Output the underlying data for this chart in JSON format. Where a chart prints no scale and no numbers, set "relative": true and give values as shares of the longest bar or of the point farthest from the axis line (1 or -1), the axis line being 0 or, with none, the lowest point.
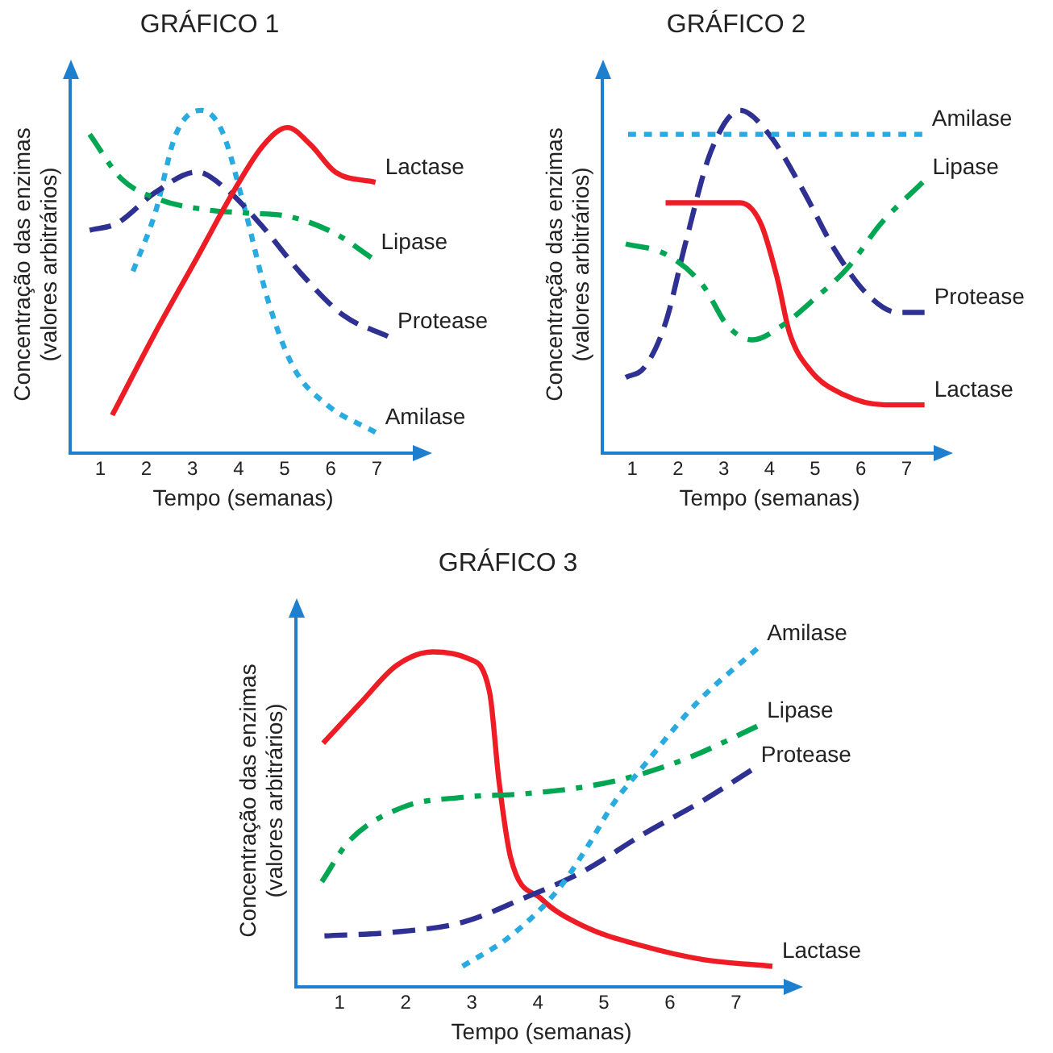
{
  "chart_data": [
    {
      "type": "line",
      "title": "GRÁFICO 1",
      "xlabel": "Tempo (semanas)",
      "ylabel": "Concentração das enzimas\n(valores arbitrários)",
      "relative": true,
      "xlim": [
        0.35,
        7.85
      ],
      "xticks": [
        1,
        2,
        3,
        4,
        5,
        6,
        7
      ],
      "grid": false,
      "legend": false,
      "marker": "none",
      "series": [
        {
          "name": "Lactase",
          "color": "#ee1c25",
          "line_style": "solid",
          "x": [
            1.26,
            2.19,
            3.1,
            3.92,
            4.55,
            5.06,
            5.56,
            6.1,
            6.97
          ],
          "values": [
            0.11,
            0.35,
            0.57,
            0.77,
            0.9,
            0.95,
            0.9,
            0.82,
            0.79
          ]
        },
        {
          "name": "Lipase",
          "color": "#00a651",
          "line_style": "dashdot",
          "x": [
            0.77,
            1.46,
            2.28,
            3.28,
            4.19,
            5.1,
            6.1,
            6.88
          ],
          "values": [
            0.93,
            0.8,
            0.74,
            0.71,
            0.7,
            0.69,
            0.64,
            0.57
          ]
        },
        {
          "name": "Protease",
          "color": "#2e3192",
          "line_style": "dashed",
          "x": [
            0.77,
            1.36,
            2.19,
            3.1,
            3.73,
            4.46,
            5.38,
            6.29,
            7.24
          ],
          "values": [
            0.65,
            0.67,
            0.76,
            0.82,
            0.77,
            0.67,
            0.52,
            0.4,
            0.34
          ]
        },
        {
          "name": "Amilase",
          "color": "#29abe2",
          "line_style": "dotted",
          "x": [
            1.71,
            2.19,
            2.64,
            3.19,
            3.64,
            4.1,
            4.65,
            5.19,
            5.92,
            6.97
          ],
          "values": [
            0.53,
            0.7,
            0.93,
            1,
            0.94,
            0.73,
            0.44,
            0.25,
            0.14,
            0.06
          ]
        }
      ]
    },
    {
      "type": "line",
      "title": "GRÁFICO 2",
      "xlabel": "Tempo (semanas)",
      "ylabel": "Concentração das enzimas\n(valores arbitrários)",
      "relative": true,
      "xlim": [
        0.35,
        7.66
      ],
      "xticks": [
        1,
        2,
        3,
        4,
        5,
        6,
        7
      ],
      "grid": false,
      "legend": false,
      "marker": "none",
      "series": [
        {
          "name": "Amilase",
          "color": "#29abe2",
          "line_style": "dotted",
          "x": [
            0.91,
            4,
            7.34
          ],
          "values": [
            0.93,
            0.93,
            0.93
          ]
        },
        {
          "name": "Lipase",
          "color": "#00a651",
          "line_style": "dashdot",
          "x": [
            0.86,
            1.73,
            2.54,
            3.09,
            3.63,
            4.26,
            4.99,
            5.71,
            6.44,
            7.35
          ],
          "values": [
            0.61,
            0.58,
            0.49,
            0.37,
            0.33,
            0.37,
            0.45,
            0.54,
            0.67,
            0.79
          ]
        },
        {
          "name": "Protease",
          "color": "#2e3192",
          "line_style": "dashed",
          "x": [
            0.86,
            1.27,
            1.73,
            2.18,
            2.72,
            3.36,
            3.99,
            4.72,
            5.44,
            6.16,
            6.8,
            7.39
          ],
          "values": [
            0.22,
            0.25,
            0.38,
            0.62,
            0.88,
            1,
            0.93,
            0.77,
            0.59,
            0.46,
            0.41,
            0.41
          ]
        },
        {
          "name": "Lactase",
          "color": "#ee1c25",
          "line_style": "solid",
          "x": [
            1.73,
            3.36,
            3.81,
            4.17,
            4.44,
            4.9,
            5.62,
            6.53,
            7.39
          ],
          "values": [
            0.73,
            0.73,
            0.67,
            0.51,
            0.35,
            0.24,
            0.17,
            0.14,
            0.14
          ]
        }
      ]
    },
    {
      "type": "line",
      "title": "GRÁFICO 3",
      "xlabel": "Tempo (semanas)",
      "ylabel": "Concentração das enzimas\n(valores arbitrários)",
      "relative": true,
      "xlim": [
        0.34,
        7.77
      ],
      "xticks": [
        1,
        2,
        3,
        4,
        5,
        6,
        7
      ],
      "grid": false,
      "legend": false,
      "marker": "none",
      "series": [
        {
          "name": "Amilase",
          "color": "#29abe2",
          "line_style": "dotted",
          "x": [
            2.86,
            3.59,
            4.32,
            4.77,
            5.14,
            5.59,
            6.41,
            7.32
          ],
          "values": [
            0.06,
            0.15,
            0.29,
            0.42,
            0.54,
            0.65,
            0.84,
            1
          ]
        },
        {
          "name": "Lipase",
          "color": "#00a651",
          "line_style": "dashdot",
          "x": [
            0.73,
            1.14,
            1.95,
            2.86,
            3.77,
            4.68,
            5.41,
            6.32,
            7.32
          ],
          "values": [
            0.31,
            0.43,
            0.53,
            0.56,
            0.57,
            0.59,
            0.62,
            0.68,
            0.77
          ]
        },
        {
          "name": "Protease",
          "color": "#2e3192",
          "line_style": "dashed",
          "x": [
            0.77,
            1.77,
            2.86,
            3.77,
            4.68,
            5.59,
            6.5,
            7.23
          ],
          "values": [
            0.15,
            0.16,
            0.19,
            0.26,
            0.34,
            0.45,
            0.55,
            0.64
          ]
        },
        {
          "name": "Lactase",
          "color": "#ee1c25",
          "line_style": "solid",
          "x": [
            0.75,
            1.32,
            1.86,
            2.41,
            2.95,
            3.27,
            3.41,
            3.59,
            4.05,
            4.68,
            5.59,
            6.5,
            7.55
          ],
          "values": [
            0.72,
            0.84,
            0.95,
            0.99,
            0.97,
            0.87,
            0.61,
            0.38,
            0.26,
            0.18,
            0.12,
            0.08,
            0.06
          ]
        }
      ]
    }
  ]
}
